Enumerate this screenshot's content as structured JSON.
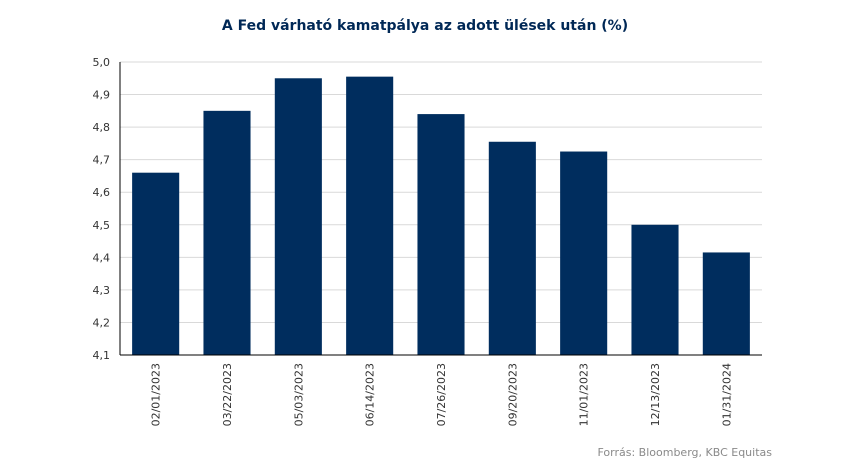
{
  "chart_data": {
    "type": "bar",
    "title": "A Fed várható kamatpálya az adott ülések után (%)",
    "source": "Forrás: Bloomberg, KBC Equitas",
    "categories": [
      "02/01/2023",
      "03/22/2023",
      "05/03/2023",
      "06/14/2023",
      "07/26/2023",
      "09/20/2023",
      "11/01/2023",
      "12/13/2023",
      "01/31/2024"
    ],
    "values": [
      4.66,
      4.85,
      4.95,
      4.955,
      4.84,
      4.755,
      4.725,
      4.5,
      4.415
    ],
    "ylim": [
      4.1,
      5.0
    ],
    "yticks": [
      "4,1",
      "4,2",
      "4,3",
      "4,4",
      "4,5",
      "4,6",
      "4,7",
      "4,8",
      "4,9",
      "5,0"
    ],
    "grid": true,
    "bar_color": "#002D5E"
  }
}
